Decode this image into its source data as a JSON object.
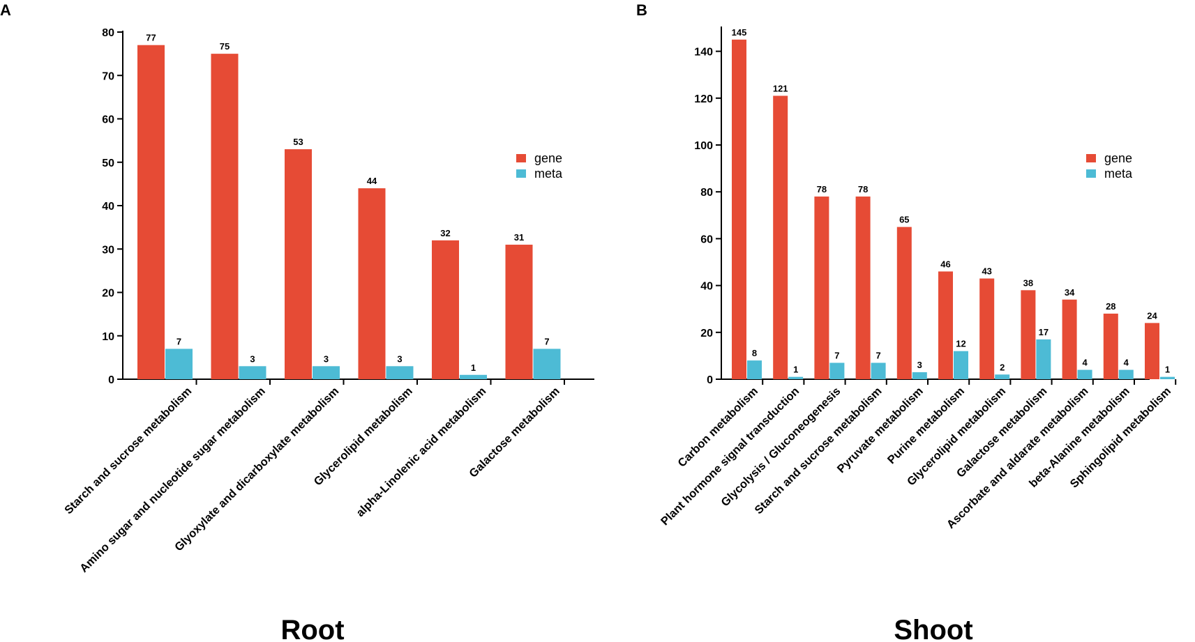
{
  "colors": {
    "gene": "#E64B35",
    "meta": "#4DBBD5",
    "axis": "#000000"
  },
  "chart_data": [
    {
      "panel": "A",
      "type": "bar",
      "title": "Root",
      "xlabel": "",
      "ylabel": "",
      "ylim": [
        0,
        80
      ],
      "yticks": [
        "0",
        "10",
        "20",
        "30",
        "40",
        "50",
        "60",
        "70",
        "80"
      ],
      "legend": {
        "position": "right",
        "entries": [
          "gene",
          "meta"
        ]
      },
      "categories": [
        "Starch and sucrose metabolism",
        "Amino sugar and nucleotide sugar metabolism",
        "Glyoxylate and dicarboxylate metabolism",
        "Glycerolipid metabolism",
        "alpha-Linolenic acid metabolism",
        "Galactose metabolism"
      ],
      "series": [
        {
          "name": "gene",
          "values": [
            77,
            75,
            53,
            44,
            32,
            31
          ]
        },
        {
          "name": "meta",
          "values": [
            7,
            3,
            3,
            3,
            1,
            7
          ]
        }
      ]
    },
    {
      "panel": "B",
      "type": "bar",
      "title": "Shoot",
      "xlabel": "",
      "ylabel": "",
      "ylim": [
        0,
        150
      ],
      "yticks": [
        "0",
        "20",
        "40",
        "60",
        "80",
        "100",
        "120",
        "140"
      ],
      "legend": {
        "position": "right",
        "entries": [
          "gene",
          "meta"
        ]
      },
      "categories": [
        "Carbon metabolism",
        "Plant hormone signal transduction",
        "Glycolysis / Gluconeogenesis",
        "Starch and sucrose metabolism",
        "Pyruvate metabolism",
        "Purine metabolism",
        "Glycerolipid metabolism",
        "Galactose metabolism",
        "Ascorbate and aldarate metabolism",
        "beta-Alanine metabolism",
        "Sphingolipid metabolism"
      ],
      "series": [
        {
          "name": "gene",
          "values": [
            145,
            121,
            78,
            78,
            65,
            46,
            43,
            38,
            34,
            28,
            24
          ]
        },
        {
          "name": "meta",
          "values": [
            8,
            1,
            7,
            7,
            3,
            12,
            2,
            17,
            4,
            4,
            1
          ]
        }
      ]
    }
  ]
}
